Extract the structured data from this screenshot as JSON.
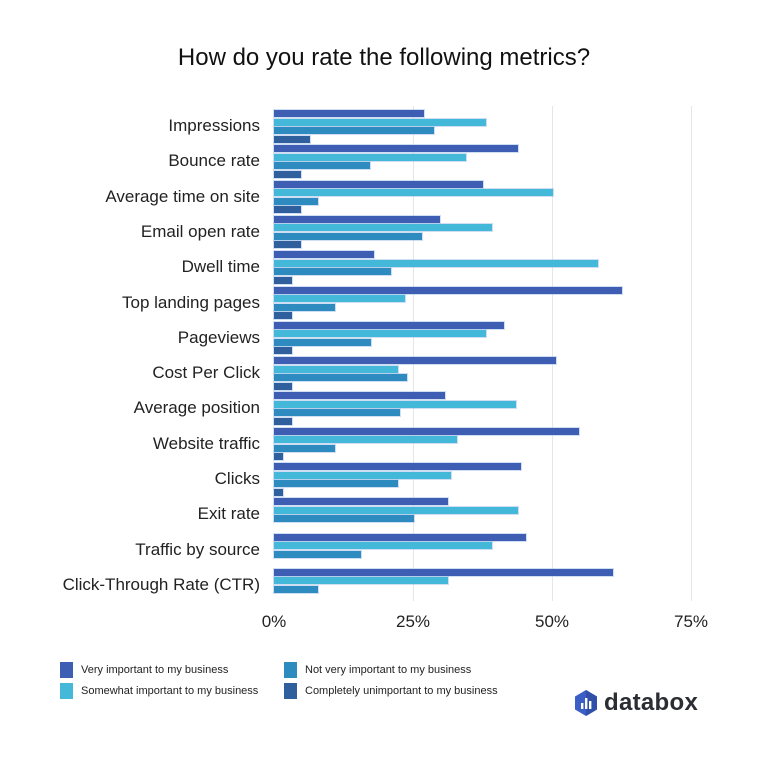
{
  "chart_data": {
    "type": "bar",
    "orientation": "horizontal",
    "title": "How do you rate the following metrics?",
    "xlabel": "",
    "ylabel": "",
    "xlim": [
      0,
      75
    ],
    "x_ticks": [
      "0%",
      "25%",
      "50%",
      "75%"
    ],
    "grid": true,
    "legend_position": "bottom",
    "categories": [
      "Impressions",
      "Bounce rate",
      "Average time on site",
      "Email open rate",
      "Dwell time",
      "Top landing pages",
      "Pageviews",
      "Cost Per Click",
      "Average position",
      "Website traffic",
      "Clicks",
      "Exit rate",
      "Traffic by source",
      "Click-Through Rate (CTR)"
    ],
    "series": [
      {
        "name": "Very important to my business",
        "color": "#3d5eb3",
        "values": [
          27.0,
          43.8,
          37.6,
          29.8,
          17.9,
          62.6,
          41.4,
          50.8,
          30.8,
          54.8,
          44.5,
          31.3,
          45.4,
          61.0
        ]
      },
      {
        "name": "Somewhat important to my business",
        "color": "#43b8d8",
        "values": [
          38.2,
          34.5,
          50.1,
          39.2,
          58.2,
          23.5,
          38.2,
          22.3,
          43.6,
          32.9,
          31.8,
          43.8,
          39.2,
          31.3
        ]
      },
      {
        "name": "Not very important to my business",
        "color": "#2e8bbf",
        "values": [
          28.7,
          17.3,
          7.9,
          26.7,
          21.0,
          11.0,
          17.5,
          23.9,
          22.7,
          11.0,
          22.3,
          25.1,
          15.7,
          7.9
        ]
      },
      {
        "name": "Completely unimportant to my business",
        "color": "#2f5f9d",
        "values": [
          6.4,
          4.8,
          4.8,
          4.8,
          3.3,
          3.2,
          3.2,
          3.2,
          3.3,
          1.6,
          1.7,
          0,
          0,
          0
        ]
      }
    ]
  },
  "brand": {
    "name": "databox",
    "icon": "databox-hexagon-bars-icon",
    "color": "#3b5fc4"
  }
}
